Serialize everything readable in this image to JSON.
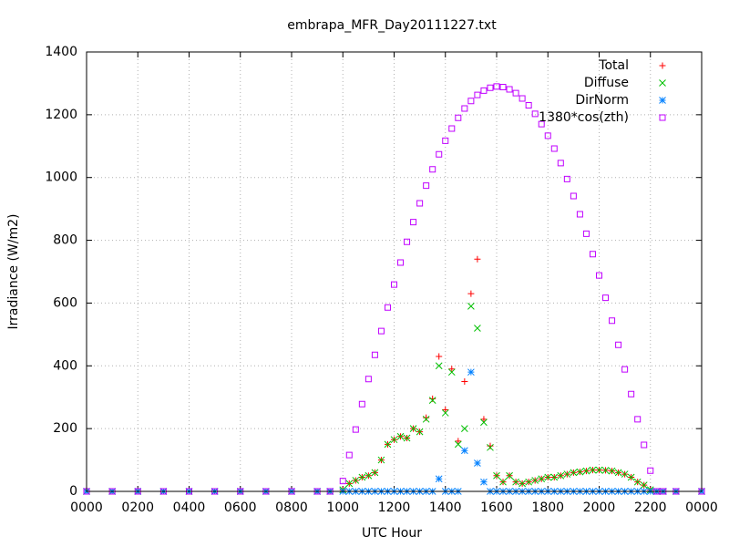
{
  "chart_data": {
    "type": "scatter",
    "title": "embrapa_MFR_Day20111227.txt",
    "x_label": "UTC Hour",
    "y_label": "Irradiance (W/m2)",
    "x": [
      0,
      1,
      2,
      3,
      4,
      5,
      6,
      7,
      8,
      9,
      9.5,
      10,
      10.25,
      10.5,
      10.75,
      11,
      11.25,
      11.5,
      11.75,
      12,
      12.25,
      12.5,
      12.75,
      13,
      13.25,
      13.5,
      13.75,
      14,
      14.25,
      14.5,
      14.75,
      15,
      15.25,
      15.5,
      15.75,
      16,
      16.25,
      16.5,
      16.75,
      17,
      17.25,
      17.5,
      17.75,
      18,
      18.25,
      18.5,
      18.75,
      19,
      19.25,
      19.5,
      19.75,
      20,
      20.25,
      20.5,
      20.75,
      21,
      21.25,
      21.5,
      21.75,
      22,
      22.25,
      22.5,
      23,
      24
    ],
    "series": [
      {
        "name": "Total",
        "color": "#ff0000",
        "marker": "plus",
        "values": [
          0,
          0,
          0,
          0,
          0,
          0,
          0,
          0,
          0,
          0,
          0,
          5,
          25,
          35,
          45,
          50,
          60,
          100,
          150,
          165,
          175,
          170,
          200,
          190,
          235,
          295,
          430,
          260,
          390,
          160,
          350,
          630,
          740,
          230,
          145,
          50,
          30,
          50,
          30,
          25,
          30,
          35,
          40,
          45,
          45,
          50,
          55,
          60,
          62,
          65,
          68,
          68,
          67,
          65,
          60,
          55,
          45,
          30,
          20,
          5,
          0,
          0,
          0,
          0
        ]
      },
      {
        "name": "Diffuse",
        "color": "#00c000",
        "marker": "cross",
        "values": [
          0,
          0,
          0,
          0,
          0,
          0,
          0,
          0,
          0,
          0,
          0,
          5,
          25,
          35,
          45,
          50,
          60,
          100,
          150,
          165,
          175,
          170,
          200,
          190,
          230,
          290,
          400,
          250,
          380,
          150,
          200,
          590,
          520,
          220,
          140,
          50,
          30,
          50,
          30,
          25,
          30,
          35,
          40,
          45,
          45,
          50,
          55,
          60,
          62,
          65,
          68,
          68,
          67,
          65,
          60,
          55,
          45,
          30,
          20,
          5,
          0,
          0,
          0,
          0
        ]
      },
      {
        "name": "DirNorm",
        "color": "#0080ff",
        "marker": "star",
        "values": [
          0,
          0,
          0,
          0,
          0,
          0,
          0,
          0,
          0,
          0,
          0,
          0,
          0,
          0,
          0,
          0,
          0,
          0,
          0,
          0,
          0,
          0,
          0,
          0,
          0,
          0,
          40,
          0,
          0,
          0,
          130,
          380,
          90,
          30,
          0,
          0,
          0,
          0,
          0,
          0,
          0,
          0,
          0,
          0,
          0,
          0,
          0,
          0,
          0,
          0,
          0,
          0,
          0,
          0,
          0,
          0,
          0,
          0,
          0,
          0,
          0,
          0,
          0,
          0
        ]
      },
      {
        "name": "1380*cos(zth)",
        "color": "#c000ff",
        "marker": "square",
        "values": [
          0,
          0,
          0,
          0,
          0,
          0,
          0,
          0,
          0,
          0,
          0,
          33,
          116,
          197,
          278,
          358,
          435,
          511,
          586,
          659,
          729,
          795,
          858,
          918,
          974,
          1026,
          1074,
          1117,
          1156,
          1190,
          1220,
          1244,
          1263,
          1277,
          1286,
          1290,
          1288,
          1281,
          1269,
          1252,
          1230,
          1203,
          1170,
          1133,
          1092,
          1046,
          995,
          941,
          883,
          821,
          756,
          688,
          617,
          544,
          467,
          389,
          310,
          230,
          148,
          66,
          0,
          0,
          0,
          0
        ]
      }
    ],
    "xlim": [
      0,
      24
    ],
    "xticks": [
      {
        "value": 0,
        "label": "0000"
      },
      {
        "value": 2,
        "label": "0200"
      },
      {
        "value": 4,
        "label": "0400"
      },
      {
        "value": 6,
        "label": "0600"
      },
      {
        "value": 8,
        "label": "0800"
      },
      {
        "value": 10,
        "label": "1000"
      },
      {
        "value": 12,
        "label": "1200"
      },
      {
        "value": 14,
        "label": "1400"
      },
      {
        "value": 16,
        "label": "1600"
      },
      {
        "value": 18,
        "label": "1800"
      },
      {
        "value": 20,
        "label": "2000"
      },
      {
        "value": 22,
        "label": "2200"
      },
      {
        "value": 24,
        "label": "0000"
      }
    ],
    "ylim": [
      0,
      1400
    ],
    "yticks": [
      0,
      200,
      400,
      600,
      800,
      1000,
      1200,
      1400
    ],
    "grid": true,
    "legend": "top-right"
  }
}
